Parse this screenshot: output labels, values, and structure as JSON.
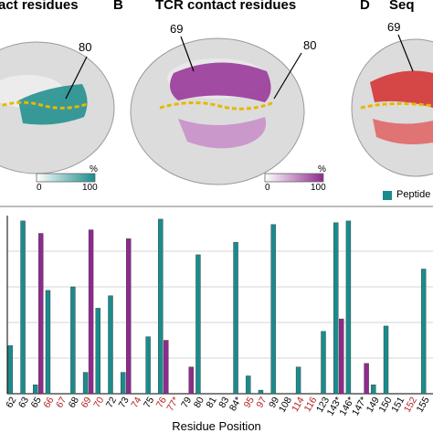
{
  "panels": {
    "a_title": "act residues",
    "b_letter": "B",
    "b_title": "TCR contact residues",
    "d_letter": "D",
    "d_title": "Seq",
    "callouts": [
      "80",
      "69",
      "80",
      "69"
    ],
    "colorbars": [
      {
        "min": "0",
        "max": "100",
        "unit": "%",
        "color": "#1a8c8c"
      },
      {
        "min": "0",
        "max": "100",
        "unit": "%",
        "color": "#8e2a8e"
      }
    ]
  },
  "legend": {
    "label": "Peptide",
    "color": "#1a8c8c"
  },
  "colors": {
    "teal": "#1a8c8c",
    "purple": "#8e2a8e",
    "red_label": "#b22222",
    "surface": "#d9d9d9",
    "peptide": "#e6b800"
  },
  "chart_data": {
    "type": "bar",
    "xlabel": "Residue Position",
    "ylabel": "",
    "ylim": [
      0,
      100
    ],
    "categories": [
      "62",
      "63",
      "65",
      "66",
      "67",
      "68",
      "69",
      "70",
      "72",
      "73",
      "74",
      "75",
      "76",
      "77*",
      "79",
      "80",
      "81",
      "83",
      "84*",
      "95",
      "97",
      "99",
      "108",
      "114",
      "116",
      "123",
      "143*",
      "146*",
      "147*",
      "149",
      "150",
      "151",
      "152",
      "155"
    ],
    "highlighted_categories": [
      "66",
      "67",
      "69",
      "70",
      "74",
      "76",
      "77*",
      "95",
      "97",
      "114",
      "116",
      "152"
    ],
    "series": [
      {
        "name": "Peptide",
        "color": "#1a8c8c",
        "values": [
          27,
          97,
          5,
          58,
          0,
          60,
          12,
          48,
          55,
          12,
          0,
          32,
          98,
          0,
          0,
          78,
          0,
          0,
          85,
          10,
          2,
          95,
          0,
          15,
          0,
          35,
          96,
          97,
          0,
          5,
          38,
          0,
          0,
          70
        ]
      },
      {
        "name": "",
        "color": "#8e2a8e",
        "values": [
          0,
          0,
          90,
          0,
          0,
          0,
          92,
          0,
          0,
          87,
          0,
          0,
          30,
          0,
          15,
          0,
          0,
          0,
          0,
          0,
          0,
          0,
          0,
          0,
          0,
          0,
          42,
          0,
          17,
          0,
          0,
          0,
          0,
          0
        ]
      }
    ]
  }
}
